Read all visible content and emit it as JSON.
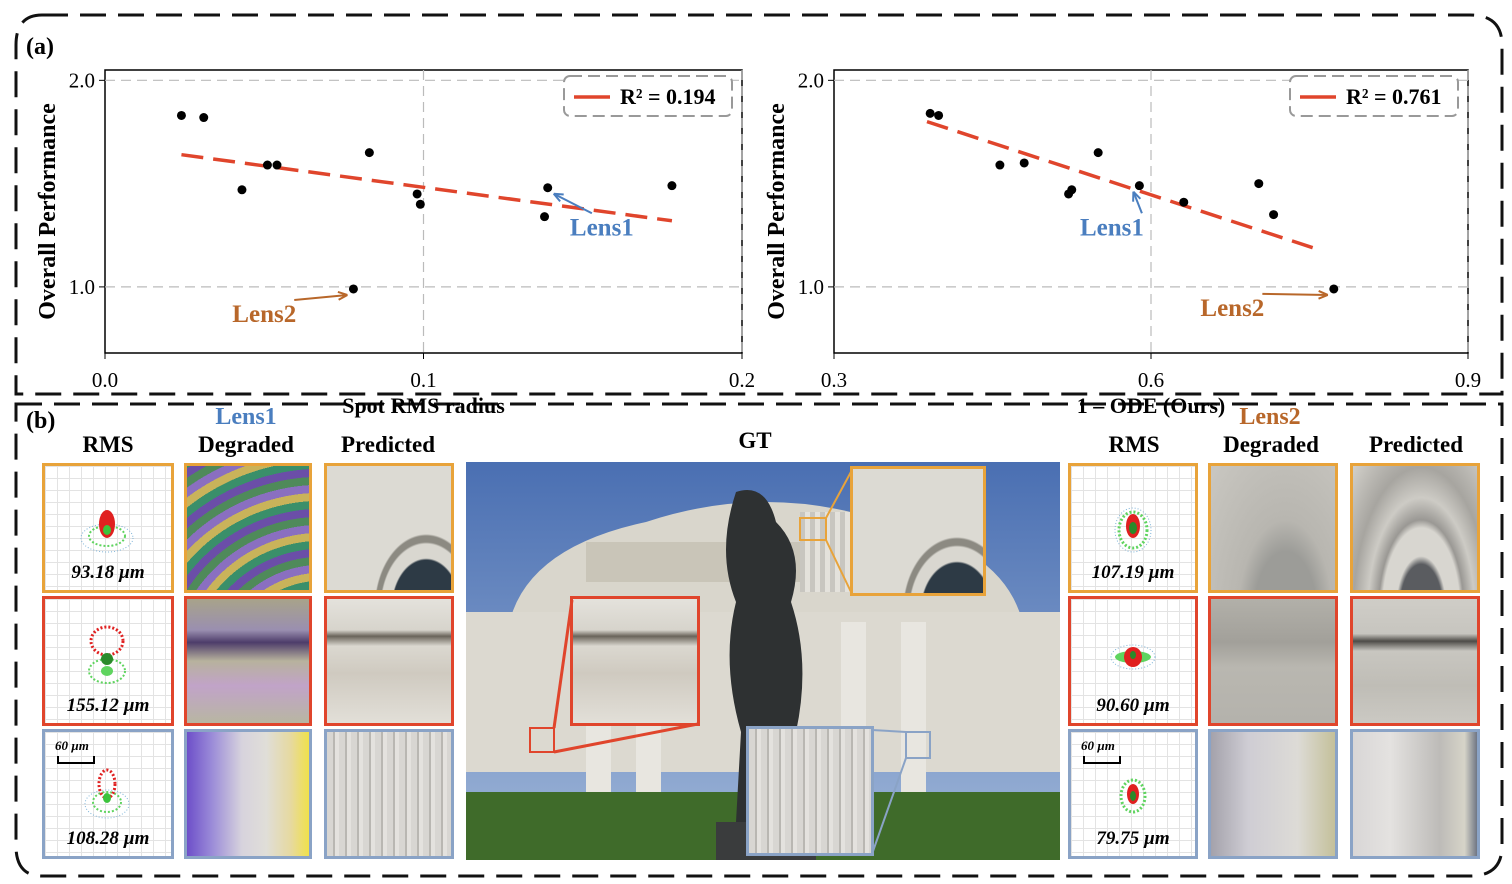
{
  "panel_a": {
    "label": "(a)",
    "chart_data": [
      {
        "type": "scatter",
        "xlabel": "Spot RMS radius",
        "ylabel": "Overall Performance",
        "xlim": [
          0.0,
          0.2
        ],
        "ylim": [
          0.68,
          2.05
        ],
        "xticks": [
          "0.0",
          "0.1",
          "0.2"
        ],
        "yticks": [
          "1.0",
          "2.0"
        ],
        "grid": "dashed",
        "legend": "top-right",
        "legend_label": "R² = 0.194",
        "points": [
          [
            0.024,
            1.83
          ],
          [
            0.031,
            1.82
          ],
          [
            0.043,
            1.47
          ],
          [
            0.051,
            1.59
          ],
          [
            0.054,
            1.59
          ],
          [
            0.078,
            0.99
          ],
          [
            0.083,
            1.65
          ],
          [
            0.098,
            1.45
          ],
          [
            0.099,
            1.4
          ],
          [
            0.138,
            1.34
          ],
          [
            0.139,
            1.48
          ],
          [
            0.178,
            1.49
          ]
        ],
        "fit_line": [
          [
            0.024,
            1.64
          ],
          [
            0.178,
            1.32
          ]
        ],
        "annotations": [
          {
            "text": "Lens1",
            "color": "#4a7ebf",
            "point": [
              0.139,
              1.48
            ],
            "text_at": [
              0.156,
              1.25
            ]
          },
          {
            "text": "Lens2",
            "color": "#b8672a",
            "point": [
              0.078,
              0.99
            ],
            "text_at": [
              0.05,
              0.83
            ]
          }
        ]
      },
      {
        "type": "scatter",
        "xlabel": "1 – ODE (Ours)",
        "ylabel": "Overall Performance",
        "xlim": [
          0.3,
          0.9
        ],
        "ylim": [
          0.68,
          2.05
        ],
        "xticks": [
          "0.3",
          "0.6",
          "0.9"
        ],
        "yticks": [
          "1.0",
          "2.0"
        ],
        "grid": "dashed",
        "legend": "top-right",
        "legend_label": "R² = 0.761",
        "points": [
          [
            0.391,
            1.84
          ],
          [
            0.399,
            1.83
          ],
          [
            0.457,
            1.59
          ],
          [
            0.48,
            1.6
          ],
          [
            0.522,
            1.45
          ],
          [
            0.525,
            1.47
          ],
          [
            0.55,
            1.65
          ],
          [
            0.589,
            1.49
          ],
          [
            0.631,
            1.41
          ],
          [
            0.702,
            1.5
          ],
          [
            0.716,
            1.35
          ],
          [
            0.773,
            0.99
          ]
        ],
        "fit_line": [
          [
            0.388,
            1.8
          ],
          [
            0.753,
            1.19
          ]
        ],
        "annotations": [
          {
            "text": "Lens1",
            "color": "#4a7ebf",
            "point": [
              0.589,
              1.49
            ],
            "text_at": [
              0.563,
              1.25
            ]
          },
          {
            "text": "Lens2",
            "color": "#b8672a",
            "point": [
              0.773,
              0.99
            ],
            "text_at": [
              0.677,
              0.86
            ]
          }
        ]
      }
    ]
  },
  "panel_b": {
    "label": "(b)",
    "lens1": {
      "name": "Lens1",
      "color": "#4a7ebf"
    },
    "lens2": {
      "name": "Lens2",
      "color": "#b8672a"
    },
    "col_rms": "RMS",
    "col_degraded": "Degraded",
    "col_predicted": "Predicted",
    "gt": "GT",
    "scale_bar": "60 µm",
    "lens1_rms": [
      "93.18 µm",
      "155.12 µm",
      "108.28 µm"
    ],
    "lens2_rms": [
      "107.19 µm",
      "90.60 µm",
      "79.75 µm"
    ],
    "row_colors": [
      "#e8a33a",
      "#e0452c",
      "#8aa3c6"
    ]
  }
}
